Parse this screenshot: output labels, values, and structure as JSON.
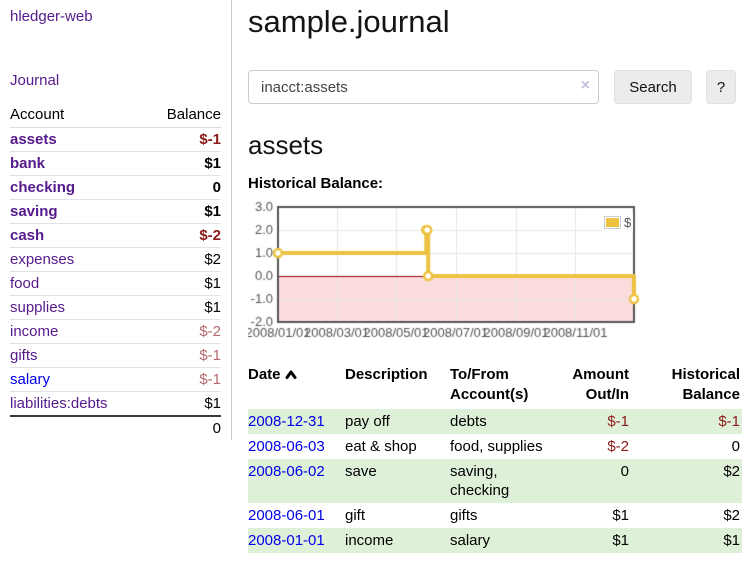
{
  "sidebar": {
    "app_title": "hledger-web",
    "journal_link": "Journal",
    "accounts": {
      "header_account": "Account",
      "header_balance": "Balance",
      "rows": [
        {
          "name": "assets",
          "balance": "$-1"
        },
        {
          "name": "bank",
          "balance": "$1"
        },
        {
          "name": "checking",
          "balance": "0"
        },
        {
          "name": "saving",
          "balance": "$1"
        },
        {
          "name": "cash",
          "balance": "$-2"
        },
        {
          "name": "expenses",
          "balance": "$2"
        },
        {
          "name": "food",
          "balance": "$1"
        },
        {
          "name": "supplies",
          "balance": "$1"
        },
        {
          "name": "income",
          "balance": "$-2"
        },
        {
          "name": "gifts",
          "balance": "$-1"
        },
        {
          "name": "salary",
          "balance": "$-1"
        },
        {
          "name": "liabilities:debts",
          "balance": "$1"
        }
      ],
      "total": "0"
    }
  },
  "main": {
    "title": "sample.journal",
    "search": {
      "value": "inacct:assets",
      "clear_icon": "×",
      "search_button": "Search",
      "help_button": "?"
    },
    "account_heading": "assets",
    "chart_label": "Historical Balance:",
    "register": {
      "headers": {
        "date": "Date",
        "description": "Description",
        "tofrom": "To/From Account(s)",
        "amount": "Amount Out/In",
        "historical": "Historical Balance"
      },
      "rows": [
        {
          "date": "2008-12-31",
          "description": "pay off",
          "accounts": "debts",
          "amount": "$-1",
          "historical": "$-1"
        },
        {
          "date": "2008-06-03",
          "description": "eat & shop",
          "accounts": "food, supplies",
          "amount": "$-2",
          "historical": "0"
        },
        {
          "date": "2008-06-02",
          "description": "save",
          "accounts": "saving, checking",
          "amount": "0",
          "historical": "$2"
        },
        {
          "date": "2008-06-01",
          "description": "gift",
          "accounts": "gifts",
          "amount": "$1",
          "historical": "$2"
        },
        {
          "date": "2008-01-01",
          "description": "income",
          "accounts": "salary",
          "amount": "$1",
          "historical": "$1"
        }
      ]
    }
  },
  "colors": {
    "link_purple": "#551a8b",
    "link_blue": "#0000e8",
    "negative_red": "#8b1a1a",
    "negative_soft_red": "#b36a6a",
    "row_green": "#dff0d8",
    "series_yellow": "#edc240",
    "chart_border": "#545454"
  },
  "chart_data": {
    "type": "line",
    "step": true,
    "title": "Historical Balance:",
    "series": [
      {
        "name": "$",
        "color": "#edc240",
        "points": [
          [
            "2008-01-01",
            1
          ],
          [
            "2008-06-01",
            2
          ],
          [
            "2008-06-02",
            2
          ],
          [
            "2008-06-03",
            0
          ],
          [
            "2008-12-31",
            -1
          ]
        ]
      }
    ],
    "xlim": [
      "2008-01-01",
      "2008-12-31"
    ],
    "ylim": [
      -2,
      3
    ],
    "x_ticks": [
      {
        "pos": "2008-01-01",
        "label": "2008/01/01"
      },
      {
        "pos": "2008-03-01",
        "label": "2008/03/01"
      },
      {
        "pos": "2008-05-01",
        "label": "2008/05/01"
      },
      {
        "pos": "2008-07-01",
        "label": "2008/07/01"
      },
      {
        "pos": "2008-09-01",
        "label": "2008/09/01"
      },
      {
        "pos": "2008-11-01",
        "label": "2008/11/01"
      }
    ],
    "y_ticks": [
      3,
      2,
      1,
      0,
      -1,
      -2
    ],
    "legend": {
      "label": "$",
      "position": "top-right"
    },
    "grid": true,
    "negative_region": {
      "fill": "#fadcdc",
      "line": "#a00000"
    }
  }
}
